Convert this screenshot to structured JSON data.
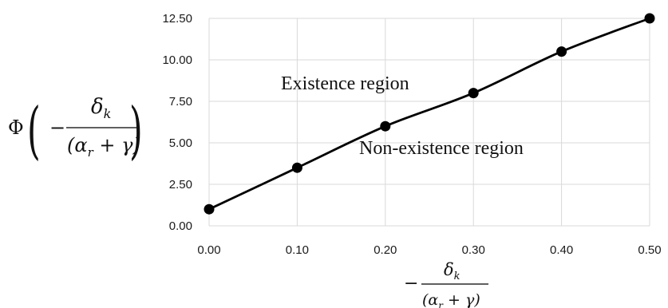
{
  "chart_data": {
    "type": "line",
    "x": [
      0.0,
      0.1,
      0.2,
      0.3,
      0.4,
      0.5
    ],
    "y": [
      1.0,
      3.5,
      6.0,
      8.0,
      10.5,
      12.5
    ],
    "xlim": [
      0.0,
      0.5
    ],
    "ylim": [
      0.0,
      12.5
    ],
    "xticks": [
      "0.00",
      "0.10",
      "0.20",
      "0.30",
      "0.40",
      "0.50"
    ],
    "yticks": [
      "0.00",
      "2.50",
      "5.00",
      "7.50",
      "10.00",
      "12.50"
    ],
    "grid": true,
    "smooth": true,
    "markers": "filled-circle",
    "line_color": "#000000",
    "ylabel": {
      "func": "Φ",
      "minus": "−",
      "numerator": "δ",
      "numerator_sub": "k",
      "denominator_left": "(α",
      "denominator_sub": "r",
      "denominator_right": " + γ)"
    },
    "xlabel": {
      "minus": "−",
      "numerator": "δ",
      "numerator_sub": "k",
      "denominator_left": "(α",
      "denominator_sub": "r",
      "denominator_right": " + γ)"
    },
    "annotations": {
      "upper": "Existence region",
      "lower": "Non-existence region"
    }
  }
}
